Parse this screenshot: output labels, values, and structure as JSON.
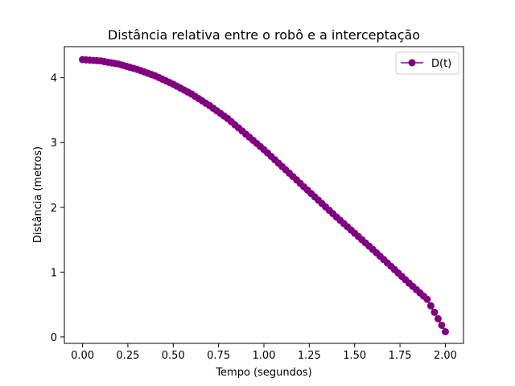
{
  "chart_data": {
    "type": "line",
    "title": "Distância relativa entre o robô e a interceptação",
    "xlabel": "Tempo (segundos)",
    "ylabel": "Distância (metros)",
    "xlim": [
      -0.1,
      2.1
    ],
    "ylim": [
      -0.1,
      4.48
    ],
    "xticks": [
      0.0,
      0.25,
      0.5,
      0.75,
      1.0,
      1.25,
      1.5,
      1.75,
      2.0
    ],
    "xtick_labels": [
      "0.00",
      "0.25",
      "0.50",
      "0.75",
      "1.00",
      "1.25",
      "1.50",
      "1.75",
      "2.00"
    ],
    "yticks": [
      0,
      1,
      2,
      3,
      4
    ],
    "ytick_labels": [
      "0",
      "1",
      "2",
      "3",
      "4"
    ],
    "grid": false,
    "legend_position": "top-right",
    "series": [
      {
        "name": "D(t)",
        "color": "#800080",
        "marker": "circle",
        "x": [
          0.0,
          0.1,
          0.2,
          0.3,
          0.4,
          0.5,
          0.6,
          0.7,
          0.8,
          0.9,
          1.0,
          1.1,
          1.2,
          1.3,
          1.4,
          1.5,
          1.6,
          1.7,
          1.8,
          1.9,
          2.0
        ],
        "values": [
          4.28,
          4.26,
          4.21,
          4.13,
          4.03,
          3.9,
          3.75,
          3.57,
          3.37,
          3.13,
          2.89,
          2.63,
          2.37,
          2.11,
          1.85,
          1.6,
          1.35,
          1.09,
          0.83,
          0.58,
          0.08
        ]
      }
    ]
  }
}
